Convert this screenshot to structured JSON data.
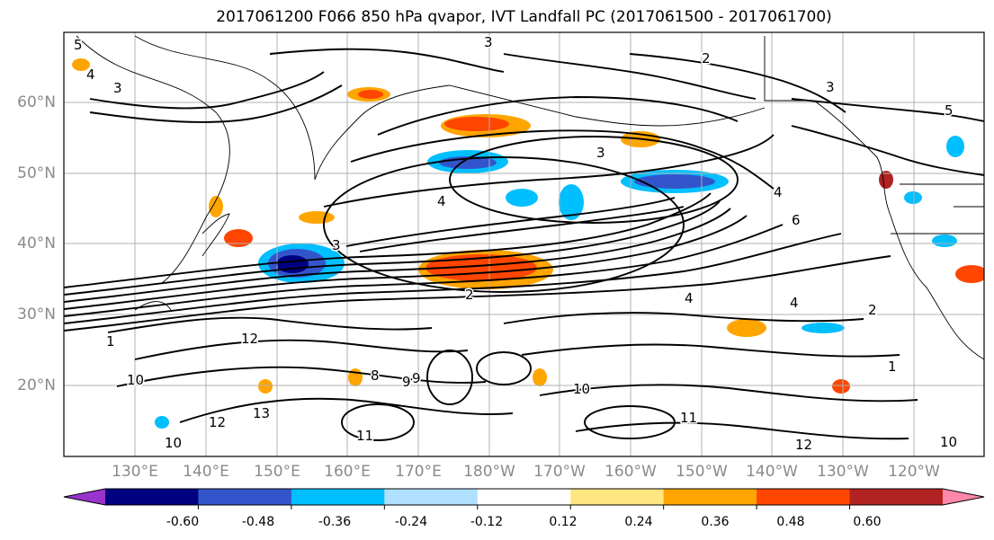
{
  "title": "2017061200 F066 850 hPa qvapor, IVT Landfall PC (2017061500 - 2017061700)",
  "latitude_labels": [
    "60°N",
    "50°N",
    "40°N",
    "30°N",
    "20°N"
  ],
  "longitude_labels": [
    "130°E",
    "140°E",
    "150°E",
    "160°E",
    "170°E",
    "180°W",
    "170°W",
    "160°W",
    "150°W",
    "140°W",
    "130°W",
    "120°W"
  ],
  "colorbar": {
    "colors": [
      "#9933cc",
      "#000080",
      "#3355cc",
      "#00bfff",
      "#b0e0ff",
      "#ffffff",
      "#ffe680",
      "#ffa500",
      "#ff4500",
      "#b22222",
      "#ff88aa"
    ],
    "tick_labels": [
      "-0.60",
      "-0.48",
      "-0.36",
      "-0.24",
      "-0.12",
      "0.12",
      "0.24",
      "0.36",
      "0.48",
      "0.60"
    ]
  },
  "contour_labels": [
    "5",
    "4",
    "3",
    "3",
    "2",
    "3",
    "3",
    "5",
    "4",
    "4",
    "6",
    "3",
    "2",
    "4",
    "4",
    "2",
    "1",
    "12",
    "10",
    "8",
    "9",
    "10",
    "11",
    "12",
    "13",
    "1",
    "10",
    "11",
    "9",
    "12",
    "10"
  ]
}
